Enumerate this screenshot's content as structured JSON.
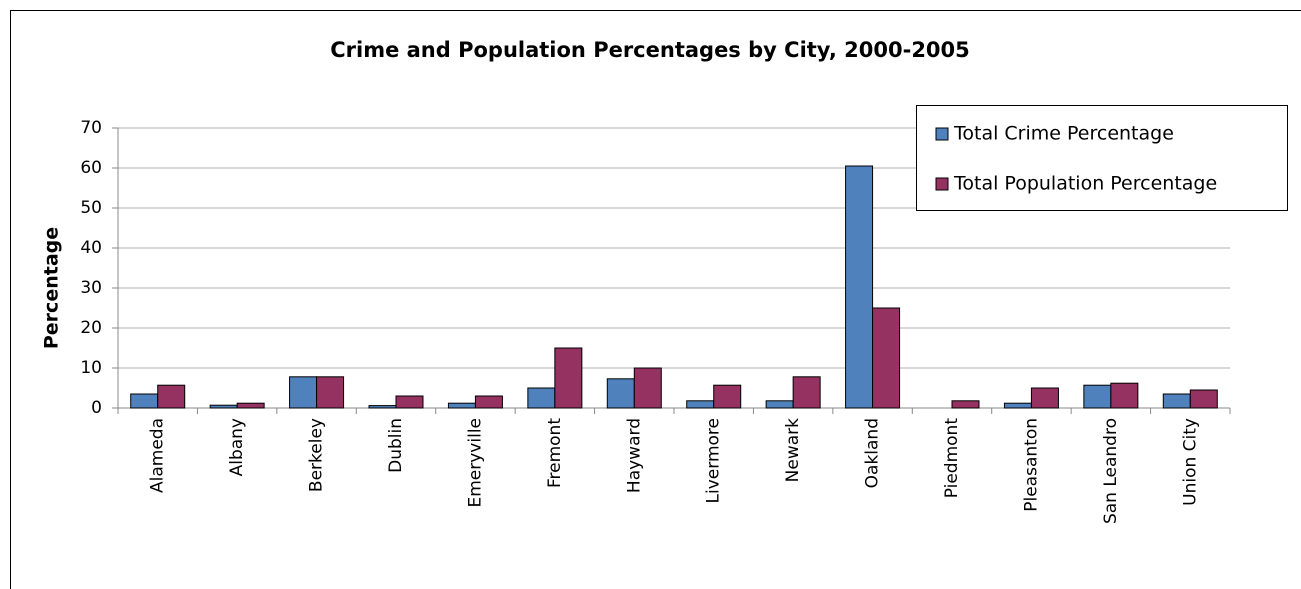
{
  "chart_data": {
    "type": "bar",
    "title": "Crime and Population Percentages by City, 2000-2005",
    "y_label": "Percentage",
    "categories": [
      "Alameda",
      "Albany",
      "Berkeley",
      "Dublin",
      "Emeryville",
      "Fremont",
      "Hayward",
      "Livermore",
      "Newark",
      "Oakland",
      "Piedmont",
      "Pleasanton",
      "San Leandro",
      "Union City"
    ],
    "series": [
      {
        "name": "Total Crime Percentage",
        "color": "#4f81bd",
        "values": [
          3.5,
          0.7,
          7.8,
          0.6,
          1.2,
          5.0,
          7.3,
          1.8,
          1.8,
          60.5,
          0,
          1.2,
          5.7,
          3.5
        ]
      },
      {
        "name": "Total Population Percentage",
        "color": "#953262",
        "values": [
          5.7,
          1.2,
          7.8,
          3.0,
          3.0,
          15.0,
          10.0,
          5.7,
          7.8,
          25.0,
          1.8,
          5.0,
          6.2,
          4.5
        ]
      }
    ],
    "ylim": [
      0,
      70
    ],
    "yticks": [
      0,
      10,
      20,
      30,
      40,
      50,
      60,
      70
    ],
    "grid": true,
    "legend": "top-right"
  }
}
